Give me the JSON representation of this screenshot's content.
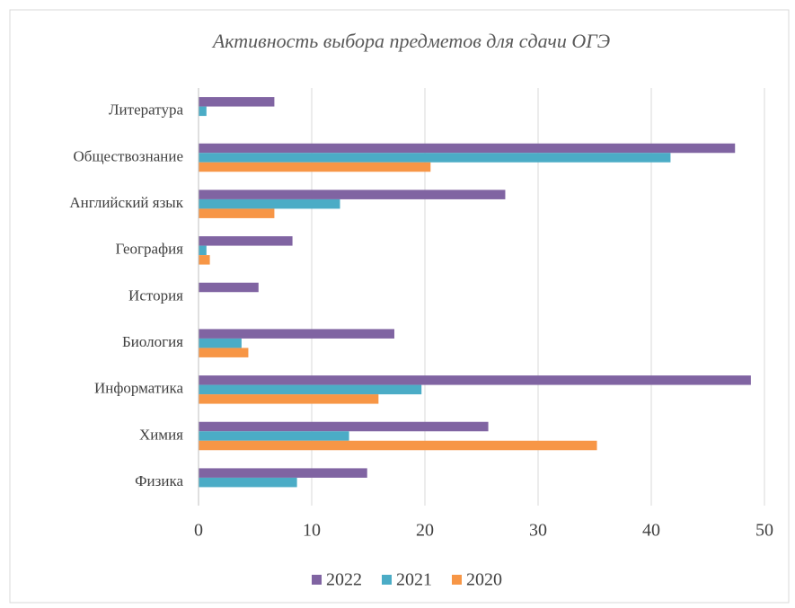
{
  "chart_data": {
    "type": "hbar",
    "title": "Активность выбора предметов для сдачи ОГЭ",
    "categories": [
      "Литература",
      "Обществознание",
      "Английский язык",
      "География",
      "История",
      "Биология",
      "Информатика",
      "Химия",
      "Физика"
    ],
    "series": [
      {
        "name": "2022",
        "color": "#8064a2",
        "values": [
          6.7,
          47.4,
          27.1,
          8.3,
          5.3,
          17.3,
          48.8,
          25.6,
          14.9
        ]
      },
      {
        "name": "2021",
        "color": "#4bacc6",
        "values": [
          0.7,
          41.7,
          12.5,
          0.7,
          0,
          3.8,
          19.7,
          13.3,
          8.7
        ]
      },
      {
        "name": "2020",
        "color": "#f79646",
        "values": [
          0,
          20.5,
          6.7,
          1.0,
          0,
          4.4,
          15.9,
          35.2,
          0
        ]
      }
    ],
    "xlim": [
      0,
      50
    ],
    "xticks": [
      0,
      10,
      20,
      30,
      40,
      50
    ],
    "grid": true,
    "legend": "bottom"
  }
}
